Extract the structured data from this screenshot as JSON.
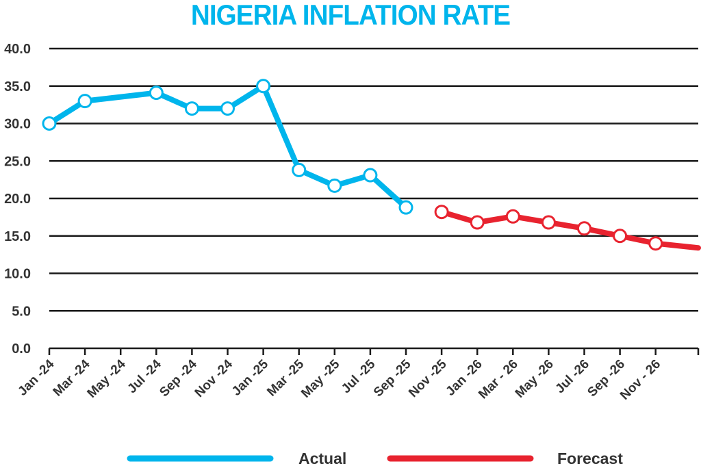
{
  "colors": {
    "actual": "#00b5ec",
    "forecast": "#e8232f",
    "grid": "#1a1a1a",
    "text": "#333333"
  },
  "chart_data": {
    "type": "line",
    "title": "NIGERIA INFLATION RATE",
    "ylim": [
      0,
      40
    ],
    "yticks": [
      "0.0",
      "5.0",
      "10.0",
      "15.0",
      "20.0",
      "25.0",
      "30.0",
      "35.0",
      "40.0"
    ],
    "grid": "horizontal",
    "legend": "bottom",
    "x_labels": [
      "Jan -24",
      "Mar -24",
      "May -24",
      "Jul -24",
      "Sep -24",
      "Nov -24",
      "Jan -25",
      "Mar -25",
      "May -25",
      "Jul -25",
      "Sep -25",
      "Nov -25",
      "Jan -26",
      "Mar - 26",
      "May -26",
      "Jul -26",
      "Sep -26",
      "Nov - 26"
    ],
    "series": [
      {
        "name": "Actual",
        "color": "#00b5ec",
        "points": [
          {
            "x": "Jan -24",
            "y": 30.0
          },
          {
            "x": "Mar -24",
            "y": 33.0
          },
          {
            "x": "Jul -24",
            "y": 34.1
          },
          {
            "x": "Sep -24",
            "y": 32.0
          },
          {
            "x": "Nov -24",
            "y": 32.0
          },
          {
            "x": "Jan -25",
            "y": 35.0
          },
          {
            "x": "Mar -25",
            "y": 23.8
          },
          {
            "x": "May -25",
            "y": 21.7
          },
          {
            "x": "Jul -25",
            "y": 23.1
          },
          {
            "x": "Sep -25",
            "y": 18.8
          }
        ]
      },
      {
        "name": "Forecast",
        "color": "#e8232f",
        "points": [
          {
            "x": "Nov -25",
            "y": 18.2
          },
          {
            "x": "Jan -26",
            "y": 16.8
          },
          {
            "x": "Mar - 26",
            "y": 17.6
          },
          {
            "x": "May -26",
            "y": 16.8
          },
          {
            "x": "Jul -26",
            "y": 16.0
          },
          {
            "x": "Sep -26",
            "y": 15.0
          },
          {
            "x": "Nov - 26",
            "y": 14.0
          }
        ],
        "trailing_y": 13.4
      }
    ]
  }
}
